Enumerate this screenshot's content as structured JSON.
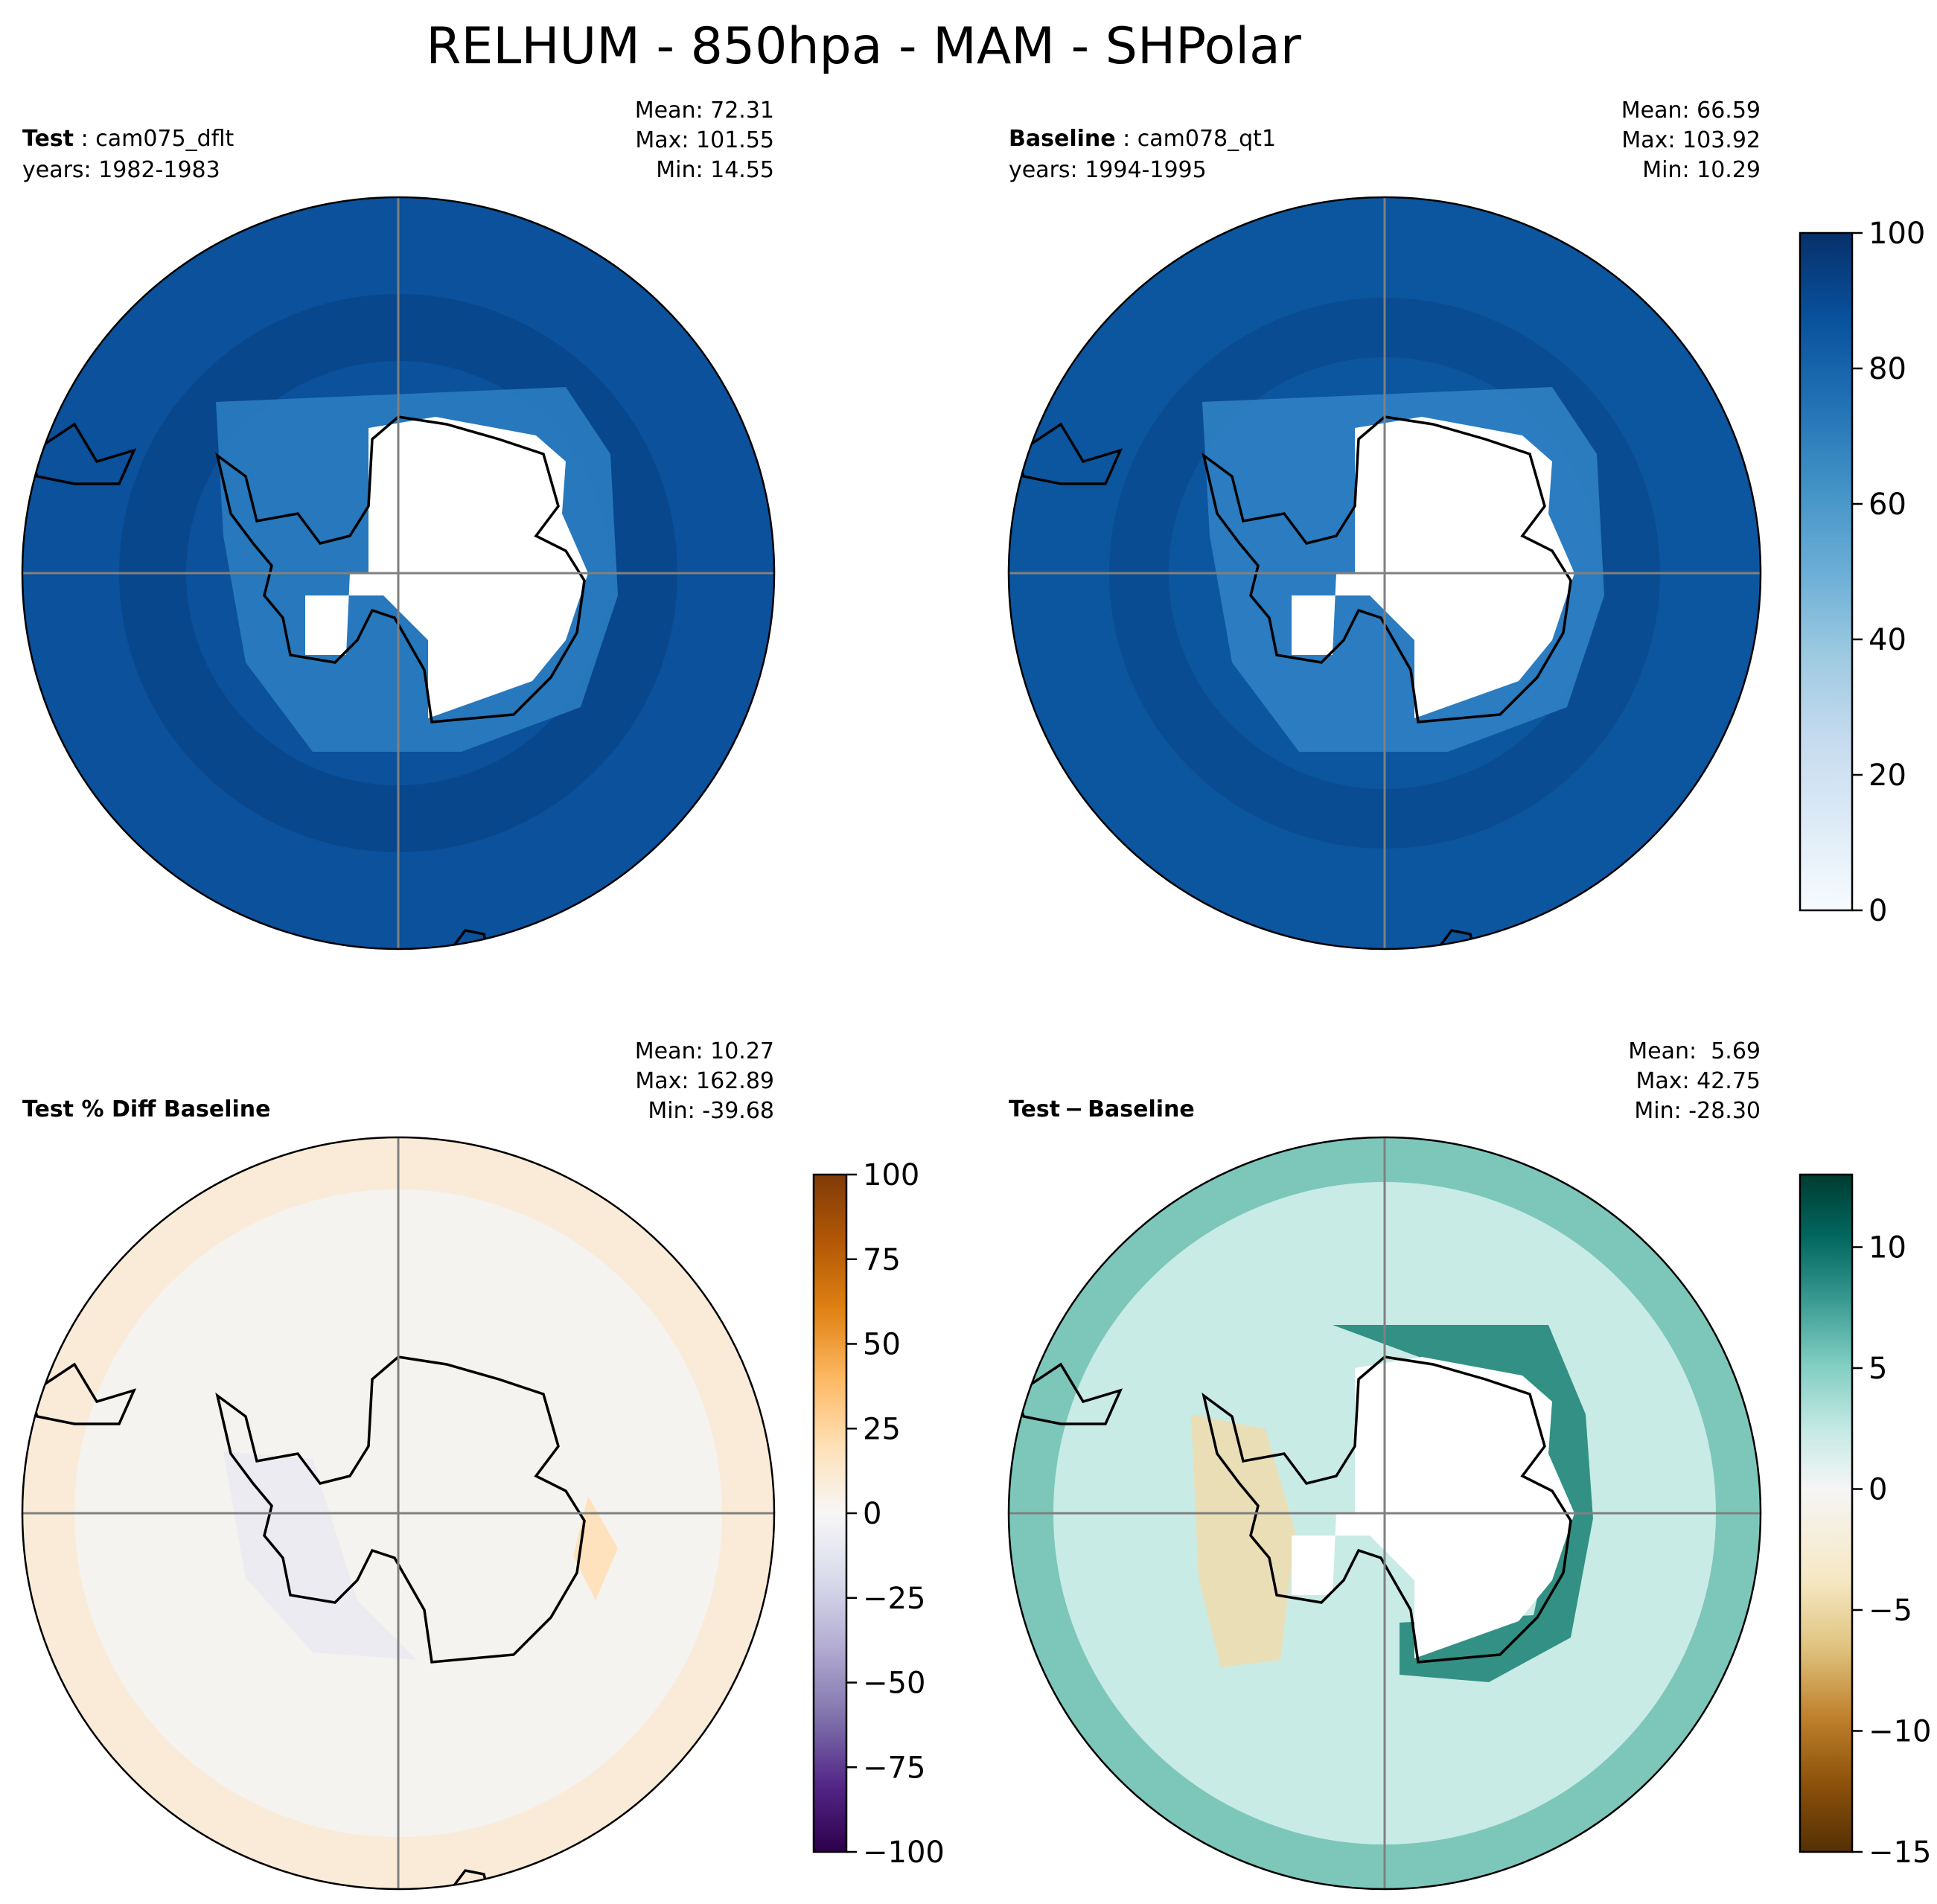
{
  "title": "RELHUM - 850hpa - MAM - SHPolar",
  "chart_data": [
    {
      "type": "heatmap",
      "projection": "south-polar-stereographic",
      "panel": "test",
      "label_bold": "Test",
      "label_case": "cam075_dflt",
      "label_years": "years: 1982-1983",
      "stats": [
        "Mean: 72.31",
        "Max: 101.55",
        "Min: 14.55"
      ],
      "mean": 72.31,
      "max": 101.55,
      "min": 14.55,
      "colormap": "Blues"
    },
    {
      "type": "heatmap",
      "projection": "south-polar-stereographic",
      "panel": "baseline",
      "label_bold": "Baseline",
      "label_case": "cam078_qt1",
      "label_years": "years: 1994-1995",
      "stats": [
        "Mean: 66.59",
        "Max: 103.92",
        "Min: 10.29"
      ],
      "mean": 66.59,
      "max": 103.92,
      "min": 10.29,
      "colormap": "Blues",
      "colorbar": {
        "range": [
          0,
          100
        ],
        "ticks": [
          "0",
          "20",
          "40",
          "60",
          "80",
          "100"
        ]
      }
    },
    {
      "type": "heatmap",
      "projection": "south-polar-stereographic",
      "panel": "pct-diff",
      "label_bold": "Test % Diff Baseline",
      "stats": [
        "Mean: 10.27",
        "Max: 162.89",
        "Min: -39.68"
      ],
      "mean": 10.27,
      "max": 162.89,
      "min": -39.68,
      "colormap": "PuOr_r",
      "colorbar": {
        "range": [
          -100,
          100
        ],
        "ticks": [
          "100",
          "75",
          "50",
          "25",
          "0",
          "−25",
          "−50",
          "−75",
          "−100"
        ]
      }
    },
    {
      "type": "heatmap",
      "projection": "south-polar-stereographic",
      "panel": "diff",
      "label_bold": "Test − Baseline",
      "label_bold_parts": [
        "Test",
        "−",
        "Baseline"
      ],
      "stats": [
        "Mean:  5.69",
        "Max: 42.75",
        "Min: -28.30"
      ],
      "mean": 5.69,
      "max": 42.75,
      "min": -28.3,
      "colormap": "BrBG",
      "colorbar": {
        "range": [
          -15,
          13
        ],
        "ticks": [
          "10",
          "5",
          "0",
          "−5",
          "−10",
          "−15"
        ]
      }
    }
  ],
  "colors": {
    "blues": [
      "#f7fbff",
      "#deebf7",
      "#c6dbef",
      "#9ecae1",
      "#6baed6",
      "#4292c6",
      "#2171b5",
      "#08519c",
      "#08306b"
    ],
    "puor": [
      "#2d004b",
      "#542788",
      "#8073ac",
      "#b2abd2",
      "#d8daeb",
      "#f7f7f7",
      "#fee0b6",
      "#fdb863",
      "#e08214",
      "#b35806",
      "#7f3b08"
    ],
    "brbg": [
      "#543005",
      "#8c510a",
      "#bf812d",
      "#dfc27d",
      "#f6e8c3",
      "#f5f5f5",
      "#c7eae5",
      "#80cdc1",
      "#35978f",
      "#01665e",
      "#003c30"
    ]
  }
}
